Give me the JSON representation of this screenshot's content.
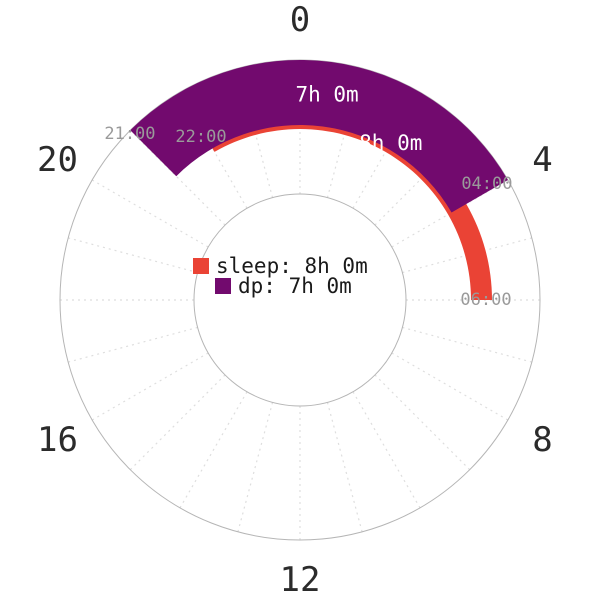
{
  "chart_data": {
    "type": "polar-bar",
    "hour_labels": [
      "0",
      "4",
      "8",
      "12",
      "16",
      "20"
    ],
    "hours_per_circle": 24,
    "series": [
      {
        "name": "sleep",
        "color": "#ea4335",
        "start_hour": 22,
        "end_hour": 6,
        "start_label": "22:00",
        "end_label": "06:00",
        "duration_label": "8h 0m",
        "legend_label": "sleep: 8h 0m",
        "ring": "inner"
      },
      {
        "name": "dp",
        "color": "#720a6e",
        "start_hour": 21,
        "end_hour": 4,
        "start_label": "21:00",
        "end_label": "04:00",
        "duration_label": "7h 0m",
        "legend_label": "dp: 7h 0m",
        "ring": "outer"
      }
    ],
    "grid": true,
    "legend_position": "center"
  }
}
